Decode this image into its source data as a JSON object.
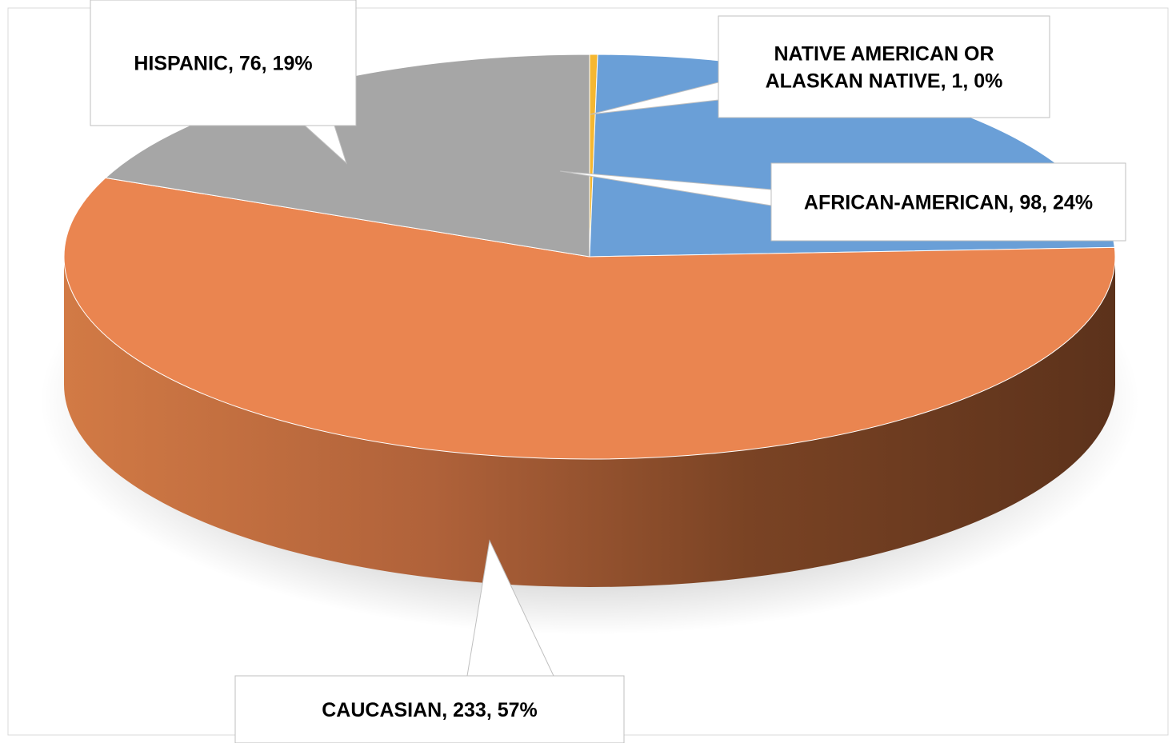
{
  "chart_data": {
    "type": "pie",
    "style": "3d",
    "title": "",
    "slices": [
      {
        "label": "NATIVE AMERICAN OR ALASKAN NATIVE",
        "value": 1,
        "percent": "0%",
        "color": "#F5B731",
        "display_lines": [
          "NATIVE AMERICAN OR",
          "ALASKAN NATIVE, 1, 0%"
        ]
      },
      {
        "label": "AFRICAN-AMERICAN",
        "value": 98,
        "percent": "24%",
        "color": "#6A9FD7",
        "display_lines": [
          "AFRICAN-AMERICAN, 98, 24%"
        ]
      },
      {
        "label": "CAUCASIAN",
        "value": 233,
        "percent": "57%",
        "color": "#EA8550",
        "display_lines": [
          "CAUCASIAN, 233, 57%"
        ]
      },
      {
        "label": "HISPANIC",
        "value": 76,
        "percent": "19%",
        "color": "#A6A6A6",
        "display_lines": [
          "HISPANIC, 76, 19%"
        ]
      }
    ],
    "legend": "none",
    "data_labels": "callouts"
  }
}
